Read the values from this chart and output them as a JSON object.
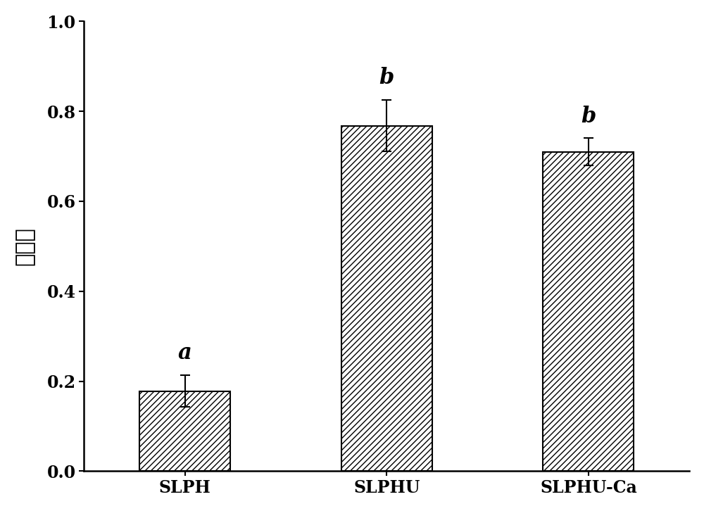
{
  "categories": [
    "SLPH",
    "SLPHU",
    "SLPHU-Ca"
  ],
  "values": [
    0.178,
    0.768,
    0.71
  ],
  "errors": [
    0.035,
    0.057,
    0.03
  ],
  "labels": [
    "a",
    "b",
    "b"
  ],
  "ylabel": "还原力",
  "ylim": [
    0.0,
    1.0
  ],
  "yticks": [
    0.0,
    0.2,
    0.4,
    0.6,
    0.8,
    1.0
  ],
  "bar_color": "#ffffff",
  "bar_edgecolor": "#000000",
  "hatch": "////",
  "bar_width": 0.45,
  "figure_width": 10.0,
  "figure_height": 7.26,
  "ylabel_fontsize": 22,
  "tick_fontsize": 17,
  "annotation_fontsize": 22,
  "background_color": "#ffffff",
  "capsize": 5,
  "linewidth": 1.5,
  "spine_linewidth": 1.8
}
